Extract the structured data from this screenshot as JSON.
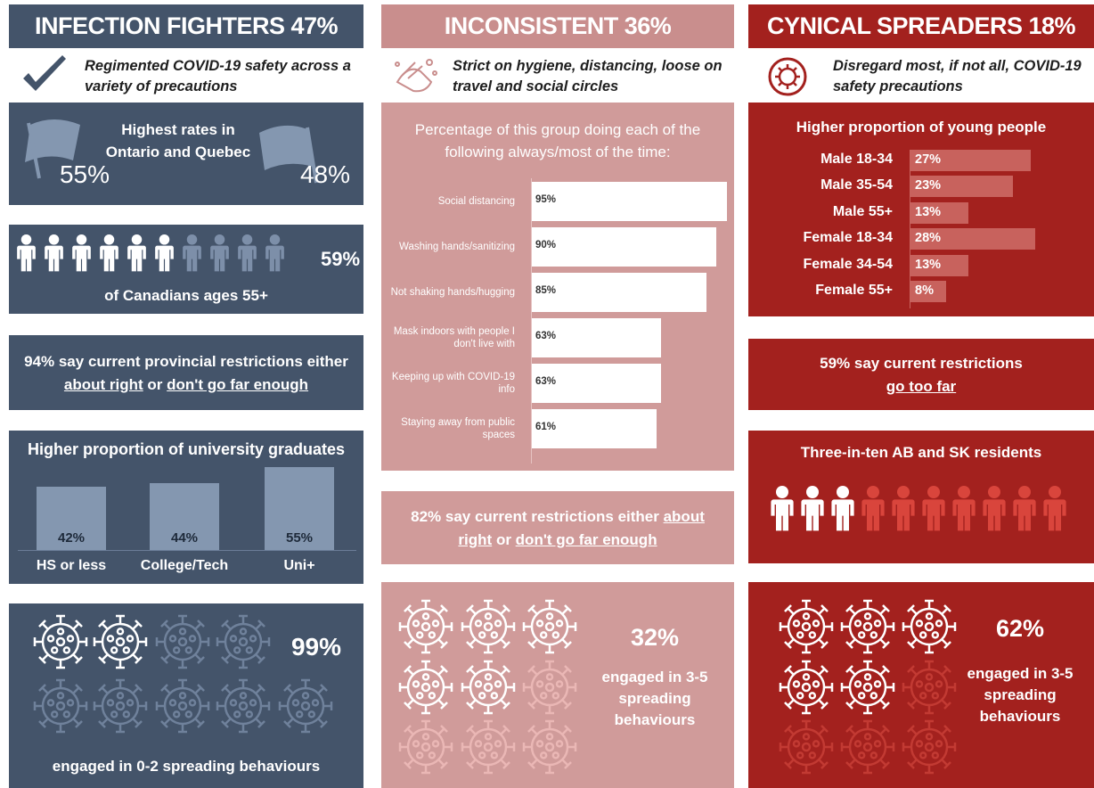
{
  "fighters": {
    "title": "INFECTION FIGHTERS 47%",
    "tagline": "Regimented COVID-19 safety across a variety of precautions",
    "provinces": {
      "heading": "Highest rates in Ontario and Quebec",
      "ontario": "55%",
      "quebec": "48%"
    },
    "age": {
      "share": "59%",
      "caption": "of Canadians ages 55+",
      "pictogram": {
        "filled": 6,
        "total": 10
      }
    },
    "restrictions": {
      "lead": "94% say current provincial restrictions either",
      "option_1": "about right",
      "joiner": "or",
      "option_2": "don't go far enough"
    },
    "education": {
      "title": "Higher proportion of university graduates",
      "categories": [
        "HS or less",
        "College/Tech",
        "Uni+"
      ],
      "values": [
        42,
        44,
        55
      ],
      "value_labels": [
        "42%",
        "44%",
        "55%"
      ],
      "color": "#8497b0"
    },
    "spreading": {
      "share": "99%",
      "caption": "engaged in 0-2 spreading behaviours",
      "pictogram": {
        "filled": 2,
        "total": 9
      }
    }
  },
  "inconsistent": {
    "title": "INCONSISTENT 36%",
    "tagline": "Strict on hygiene, distancing, loose on travel and social circles",
    "habits": {
      "title": "Percentage of this group doing each of the following always/most of the time:",
      "categories": [
        "Social distancing",
        "Washing hands/sanitizing",
        "Not shaking hands/hugging",
        "Mask indoors with people I don't live with",
        "Keeping up with COVID-19 info",
        "Staying away from public spaces"
      ],
      "values": [
        95,
        90,
        85,
        63,
        63,
        61
      ],
      "value_labels": [
        "95%",
        "90%",
        "85%",
        "63%",
        "63%",
        "61%"
      ],
      "color": "#ffffff"
    },
    "restrictions": {
      "lead": "82% say current restrictions either",
      "option_1": "about right",
      "joiner": "or",
      "option_2": "don't go far enough"
    },
    "spreading": {
      "share": "32%",
      "caption": "engaged in 3-5 spreading behaviours",
      "pictogram": {
        "filled": 5,
        "total": 9
      }
    }
  },
  "cynical": {
    "title": "CYNICAL SPREADERS 18%",
    "tagline": "Disregard most, if not all, COVID-19 safety precautions",
    "age": {
      "title": "Higher proportion of young people",
      "categories": [
        "Male 18-34",
        "Male 35-54",
        "Male 55+",
        "Female 18-34",
        "Female 34-54",
        "Female 55+"
      ],
      "values": [
        27,
        23,
        13,
        28,
        13,
        8
      ],
      "value_labels": [
        "27%",
        "23%",
        "13%",
        "28%",
        "13%",
        "8%"
      ],
      "color": "#c8625d"
    },
    "restrictions": {
      "lead": "59% say current restrictions",
      "option_1": "go too far"
    },
    "region": {
      "caption": "Three-in-ten AB and SK residents",
      "pictogram": {
        "filled": 3,
        "total": 10
      }
    },
    "spreading": {
      "share": "62%",
      "caption": "engaged in 3-5 spreading behaviours",
      "pictogram": {
        "filled": 5,
        "total": 9
      }
    }
  }
}
